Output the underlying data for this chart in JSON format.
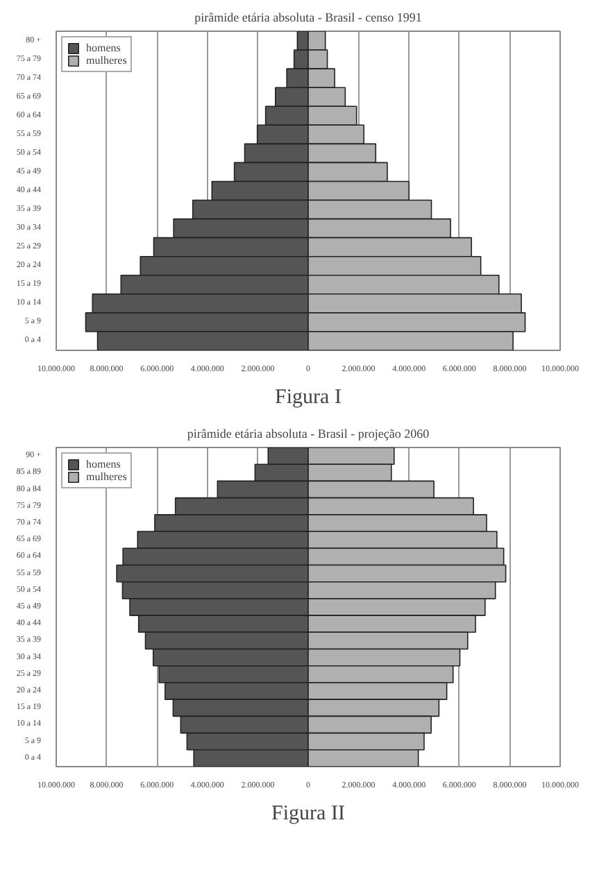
{
  "chart_data": [
    {
      "type": "bar",
      "orientation": "horizontal",
      "title": "pirâmide etária absoluta - Brasil - censo 1991",
      "categories": [
        "80 +",
        "75 a 79",
        "70 a 74",
        "65 a 69",
        "60 a 64",
        "55 a 59",
        "50 a 54",
        "45 a 49",
        "40 a 44",
        "35 a 39",
        "30 a 34",
        "25 a 29",
        "20 a 24",
        "15 a 19",
        "10 a 14",
        "5 a 9",
        "0 a 4"
      ],
      "series": [
        {
          "name": "homens",
          "color": "#555555",
          "values": [
            -430000,
            -560000,
            -850000,
            -1300000,
            -1690000,
            -2020000,
            -2520000,
            -2930000,
            -3820000,
            -4580000,
            -5340000,
            -6130000,
            -6660000,
            -7430000,
            -8560000,
            -8830000,
            -8360000
          ]
        },
        {
          "name": "mulheres",
          "color": "#b0b0b0",
          "values": [
            680000,
            760000,
            1050000,
            1470000,
            1920000,
            2210000,
            2680000,
            3140000,
            4000000,
            4890000,
            5650000,
            6480000,
            6850000,
            7570000,
            8460000,
            8610000,
            8130000
          ]
        }
      ],
      "xlim": [
        -10000000,
        10000000
      ],
      "xticks": [
        {
          "value": -10000000,
          "label": "10.000.000"
        },
        {
          "value": -8000000,
          "label": "8.000.000"
        },
        {
          "value": -6000000,
          "label": "6.000.000"
        },
        {
          "value": -4000000,
          "label": "4.000.000"
        },
        {
          "value": -2000000,
          "label": "2.000.000"
        },
        0,
        {
          "value": 2000000,
          "label": "2.000.000"
        },
        {
          "value": 4000000,
          "label": "4.000.000"
        },
        {
          "value": 6000000,
          "label": "6.000.000"
        },
        {
          "value": 8000000,
          "label": "8.000.000"
        },
        {
          "value": 10000000,
          "label": "10.000.000"
        }
      ],
      "grid": "x",
      "legend": "top left",
      "stacked": true,
      "annotations": [
        "Figura I"
      ]
    },
    {
      "type": "bar",
      "orientation": "horizontal",
      "title": "pirâmide etária absoluta - Brasil - projeção 2060",
      "categories": [
        "90 +",
        "85 a 89",
        "80 a 84",
        "75 a 79",
        "70 a 74",
        "65 a 69",
        "60 a 64",
        "55 a 59",
        "50 a 54",
        "45 a 49",
        "40 a 44",
        "35 a 39",
        "30 a 34",
        "25 a 29",
        "20 a 24",
        "15 a 19",
        "10 a 14",
        "5 a 9",
        "0 a 4"
      ],
      "series": [
        {
          "name": "homens",
          "color": "#555555",
          "values": [
            -1590000,
            -2110000,
            -3600000,
            -5270000,
            -6090000,
            -6770000,
            -7350000,
            -7600000,
            -7370000,
            -7080000,
            -6730000,
            -6460000,
            -6150000,
            -5920000,
            -5680000,
            -5360000,
            -5060000,
            -4810000,
            -4540000
          ]
        },
        {
          "name": "mulheres",
          "color": "#b0b0b0",
          "values": [
            3410000,
            3300000,
            4990000,
            6560000,
            7080000,
            7490000,
            7760000,
            7840000,
            7430000,
            7020000,
            6640000,
            6330000,
            6020000,
            5750000,
            5500000,
            5190000,
            4880000,
            4600000,
            4370000
          ]
        }
      ],
      "xlim": [
        -10000000,
        10000000
      ],
      "xticks": [
        {
          "value": -10000000,
          "label": "10.000.000"
        },
        {
          "value": -8000000,
          "label": "8.000.000"
        },
        {
          "value": -6000000,
          "label": "6.000.000"
        },
        {
          "value": -4000000,
          "label": "4.000.000"
        },
        {
          "value": -2000000,
          "label": "2.000.000"
        },
        0,
        {
          "value": 2000000,
          "label": "2.000.000"
        },
        {
          "value": 4000000,
          "label": "4.000.000"
        },
        {
          "value": 6000000,
          "label": "6.000.000"
        },
        {
          "value": 8000000,
          "label": "8.000.000"
        },
        {
          "value": 10000000,
          "label": "10.000.000"
        }
      ],
      "grid": "x",
      "legend": "top left",
      "stacked": true,
      "annotations": [
        "Figura II"
      ]
    }
  ]
}
